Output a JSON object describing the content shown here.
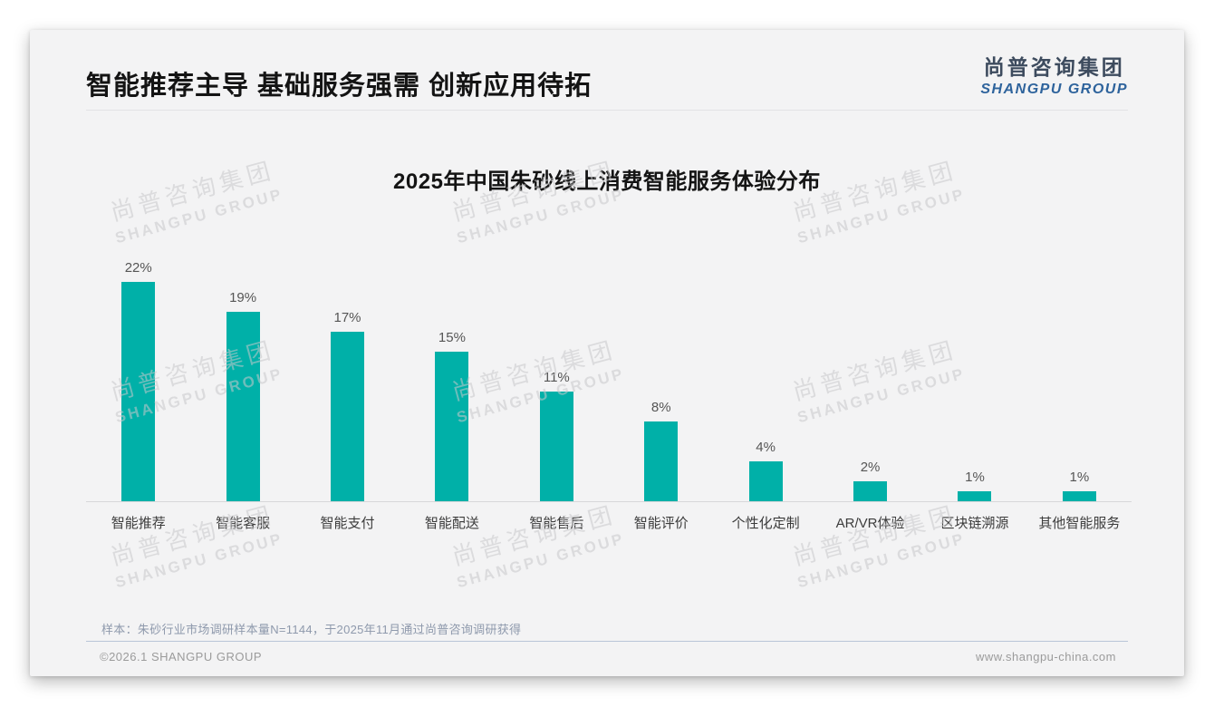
{
  "page": {
    "title": "智能推荐主导 基础服务强需 创新应用待拓",
    "logo": {
      "cn": "尚普咨询集团",
      "en": "SHANGPU GROUP"
    },
    "note": "样本：朱砂行业市场调研样本量N=1144，于2025年11月通过尚普咨询调研获得",
    "footer": {
      "copyright": "©2026.1 SHANGPU GROUP",
      "website": "www.shangpu-china.com"
    },
    "watermark": {
      "cn": "尚普咨询集团",
      "en": "SHANGPU GROUP"
    }
  },
  "chart_data": {
    "type": "bar",
    "title": "2025年中国朱砂线上消费智能服务体验分布",
    "categories": [
      "智能推荐",
      "智能客服",
      "智能支付",
      "智能配送",
      "智能售后",
      "智能评价",
      "个性化定制",
      "AR/VR体验",
      "区块链溯源",
      "其他智能服务"
    ],
    "values": [
      22,
      19,
      17,
      15,
      11,
      8,
      4,
      2,
      1,
      1
    ],
    "unit": "%",
    "value_labels": [
      "22%",
      "19%",
      "17%",
      "15%",
      "11%",
      "8%",
      "4%",
      "2%",
      "1%",
      "1%"
    ],
    "xlabel": "",
    "ylabel": "",
    "ylim": [
      0,
      24
    ],
    "grid": false,
    "legend": "none",
    "bar_color": "#00b0a8"
  },
  "colors": {
    "accent_teal": "#00b0a8",
    "logo_dark": "#3d4b5e",
    "logo_blue": "#2e639c",
    "card_background": "#f3f3f4"
  }
}
